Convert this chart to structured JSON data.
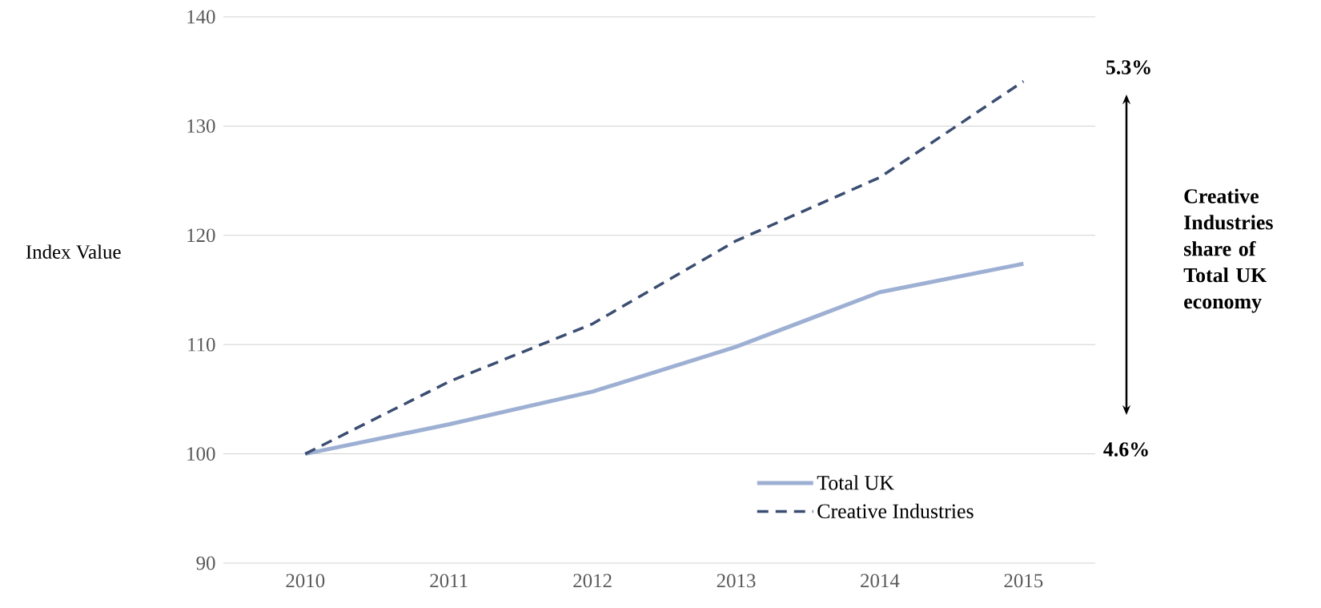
{
  "chart_data": {
    "type": "line",
    "ylabel": "Index Value",
    "categories": [
      "2010",
      "2011",
      "2012",
      "2013",
      "2014",
      "2015"
    ],
    "series": [
      {
        "name": "Total UK",
        "color": "#9db0d3",
        "line_style": "solid",
        "values": [
          100,
          102.7,
          105.7,
          109.8,
          114.8,
          117.4
        ]
      },
      {
        "name": "Creative Industries",
        "color": "#3b4e72",
        "line_style": "dashed",
        "values": [
          100,
          106.6,
          111.9,
          119.5,
          125.3,
          134.1
        ]
      }
    ],
    "ylim": [
      90,
      140
    ],
    "yticks": [
      90,
      100,
      110,
      120,
      130,
      140
    ],
    "grid": "y",
    "legend": "bottom right",
    "marker": "none",
    "annotations": [
      "5.3%",
      "4.6%",
      "Creative Industries share of Total UK economy"
    ]
  }
}
